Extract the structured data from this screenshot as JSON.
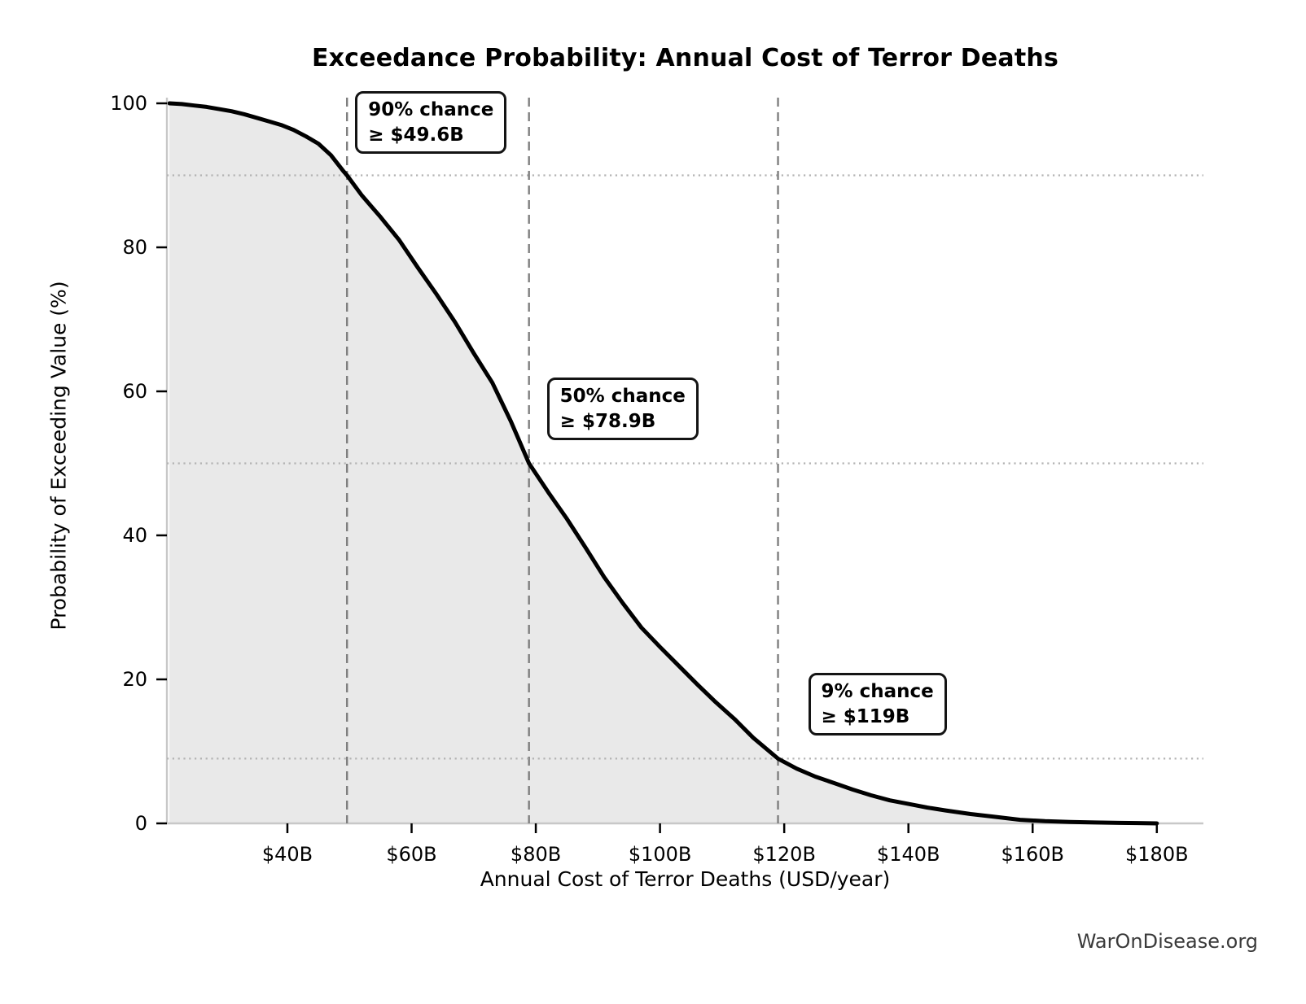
{
  "page": {
    "background": "#ffffff",
    "watermark": "WarOnDisease.org"
  },
  "colors": {
    "curve": "#000000",
    "area_fill": "#e9e9e9",
    "dashed_reference": "#7f7f7f",
    "dotted_reference": "#b3b3b3",
    "axis_spine": "#c8c8c8",
    "tick_mark": "#000000",
    "text": "#000000",
    "watermark": "#3a3a3a",
    "annotation_border": "#141414",
    "annotation_bg": "#ffffff"
  },
  "chart_data": {
    "type": "line",
    "title": "Exceedance Probability: Annual Cost of Terror Deaths",
    "xlabel": "Annual Cost of Terror Deaths (USD/year)",
    "ylabel": "Probability of Exceeding Value (%)",
    "x_unit": "billions of USD per year",
    "xlim": [
      20.6,
      187.5
    ],
    "ylim": [
      0,
      100
    ],
    "grid": "off (only dotted/dashed reference lines at annotated quantiles)",
    "legend_position": "none",
    "x_ticks": {
      "values": [
        40,
        60,
        80,
        100,
        120,
        140,
        160,
        180
      ],
      "labels": [
        "$40B",
        "$60B",
        "$80B",
        "$100B",
        "$120B",
        "$140B",
        "$160B",
        "$180B"
      ]
    },
    "y_ticks": {
      "values": [
        0,
        20,
        40,
        60,
        80,
        100
      ],
      "labels": [
        "0",
        "20",
        "40",
        "60",
        "80",
        "100"
      ]
    },
    "series": [
      {
        "name": "Exceedance probability of annual cost",
        "x": [
          21,
          23,
          25,
          27,
          29,
          31,
          33,
          35,
          37,
          39,
          41,
          43,
          45,
          47,
          49,
          49.6,
          52,
          55,
          58,
          61,
          64,
          67,
          70,
          73,
          76,
          78.9,
          82,
          85,
          88,
          91,
          94,
          97,
          100,
          103,
          106,
          109,
          112,
          115,
          119,
          122,
          125,
          128,
          131,
          134,
          137,
          140,
          143,
          146,
          150,
          154,
          158,
          162,
          166,
          170,
          174,
          178,
          180
        ],
        "y": [
          100,
          99.9,
          99.7,
          99.5,
          99.2,
          98.9,
          98.5,
          98.0,
          97.5,
          97.0,
          96.3,
          95.4,
          94.4,
          92.8,
          90.6,
          90.0,
          87.2,
          84.2,
          81.0,
          77.2,
          73.5,
          69.6,
          65.3,
          61.2,
          55.8,
          50.0,
          46.0,
          42.3,
          38.3,
          34.2,
          30.6,
          27.2,
          24.5,
          21.9,
          19.3,
          16.8,
          14.5,
          11.9,
          9.0,
          7.6,
          6.5,
          5.6,
          4.7,
          3.9,
          3.2,
          2.7,
          2.2,
          1.8,
          1.3,
          0.9,
          0.5,
          0.3,
          0.2,
          0.12,
          0.07,
          0.03,
          0.0
        ]
      }
    ],
    "annotations": [
      {
        "text_line1": "90% chance",
        "text_line2": "≥ $49.6B",
        "x_value": 49.6,
        "probability_pct": 90
      },
      {
        "text_line1": "50% chance",
        "text_line2": "≥ $78.9B",
        "x_value": 78.9,
        "probability_pct": 50
      },
      {
        "text_line1": "9% chance",
        "text_line2": "≥ $119B",
        "x_value": 119,
        "probability_pct": 9
      }
    ]
  }
}
